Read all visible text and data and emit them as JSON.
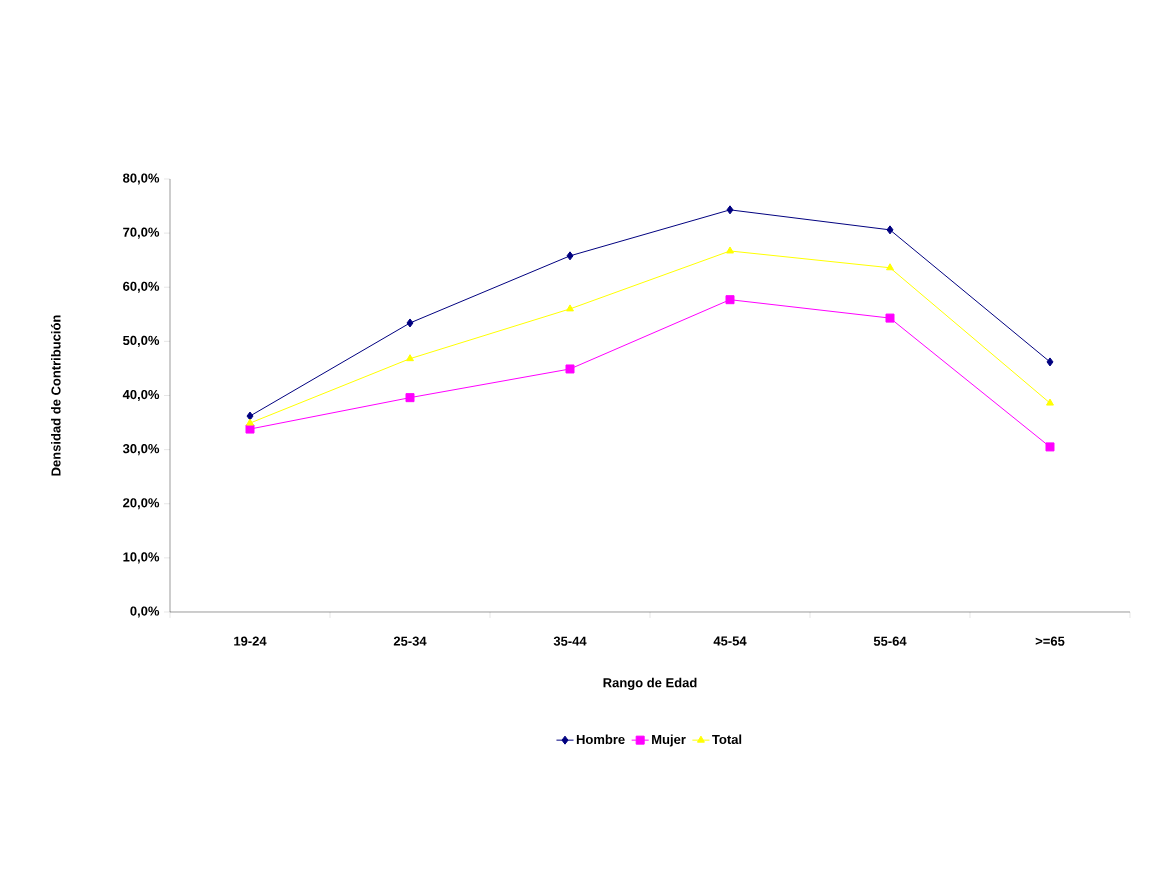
{
  "chart_data": {
    "type": "line",
    "xlabel": "Rango de Edad",
    "ylabel": "Densidad de Contribución",
    "categories": [
      "19-24",
      "25-34",
      "35-44",
      "45-54",
      "55-64",
      ">=65"
    ],
    "series": [
      {
        "name": "Hombre",
        "color": "#000080",
        "marker": "diamond",
        "values": [
          36.2,
          53.4,
          65.8,
          74.3,
          70.6,
          46.2
        ]
      },
      {
        "name": "Mujer",
        "color": "#ff00ff",
        "marker": "square",
        "values": [
          33.8,
          39.6,
          44.9,
          57.7,
          54.3,
          30.5
        ]
      },
      {
        "name": "Total",
        "color": "#ffff00",
        "marker": "triangle",
        "values": [
          34.9,
          46.8,
          56.0,
          66.7,
          63.6,
          38.6
        ]
      }
    ],
    "ylim": [
      0,
      80
    ],
    "yticks": [
      {
        "value": 0,
        "label": "0,0%"
      },
      {
        "value": 10,
        "label": "10,0%"
      },
      {
        "value": 20,
        "label": "20,0%"
      },
      {
        "value": 30,
        "label": "30,0%"
      },
      {
        "value": 40,
        "label": "40,0%"
      },
      {
        "value": 50,
        "label": "50,0%"
      },
      {
        "value": 60,
        "label": "60,0%"
      },
      {
        "value": 70,
        "label": "70,0%"
      },
      {
        "value": 80,
        "label": "80,0%"
      }
    ],
    "legend": "bottom",
    "grid": false,
    "line_style": "solid"
  }
}
